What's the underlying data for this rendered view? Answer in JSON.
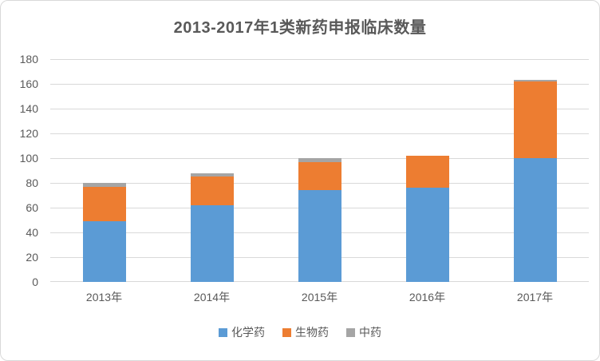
{
  "title": "2013-2017年1类新药申报临床数量",
  "colors": {
    "chemical_blue": "#5B9BD5",
    "biological_orange": "#ED7D31",
    "tcm_gray": "#A5A5A5",
    "gridline": "#D9D9D9",
    "axis_text": "#595959",
    "title_text": "#595959",
    "chart_border": "#D9D9D9",
    "background": "#FFFFFF"
  },
  "chart_data": {
    "type": "bar",
    "stacked": true,
    "title": "2013-2017年1类新药申报临床数量",
    "categories": [
      "2013年",
      "2014年",
      "2015年",
      "2016年",
      "2017年"
    ],
    "series": [
      {
        "name": "化学药",
        "color": "#5B9BD5",
        "values": [
          49,
          62,
          74,
          76,
          100
        ]
      },
      {
        "name": "生物药",
        "color": "#ED7D31",
        "values": [
          28,
          23,
          23,
          26,
          62
        ]
      },
      {
        "name": "中药",
        "color": "#A5A5A5",
        "values": [
          3,
          3,
          3,
          0,
          1
        ]
      }
    ],
    "stack_totals": [
      80,
      88,
      100,
      102,
      163
    ],
    "xlabel": "",
    "ylabel": "",
    "ylim": [
      0,
      180
    ],
    "yticks": [
      0,
      20,
      40,
      60,
      80,
      100,
      120,
      140,
      160,
      180
    ],
    "grid": true,
    "legend_position": "bottom"
  }
}
